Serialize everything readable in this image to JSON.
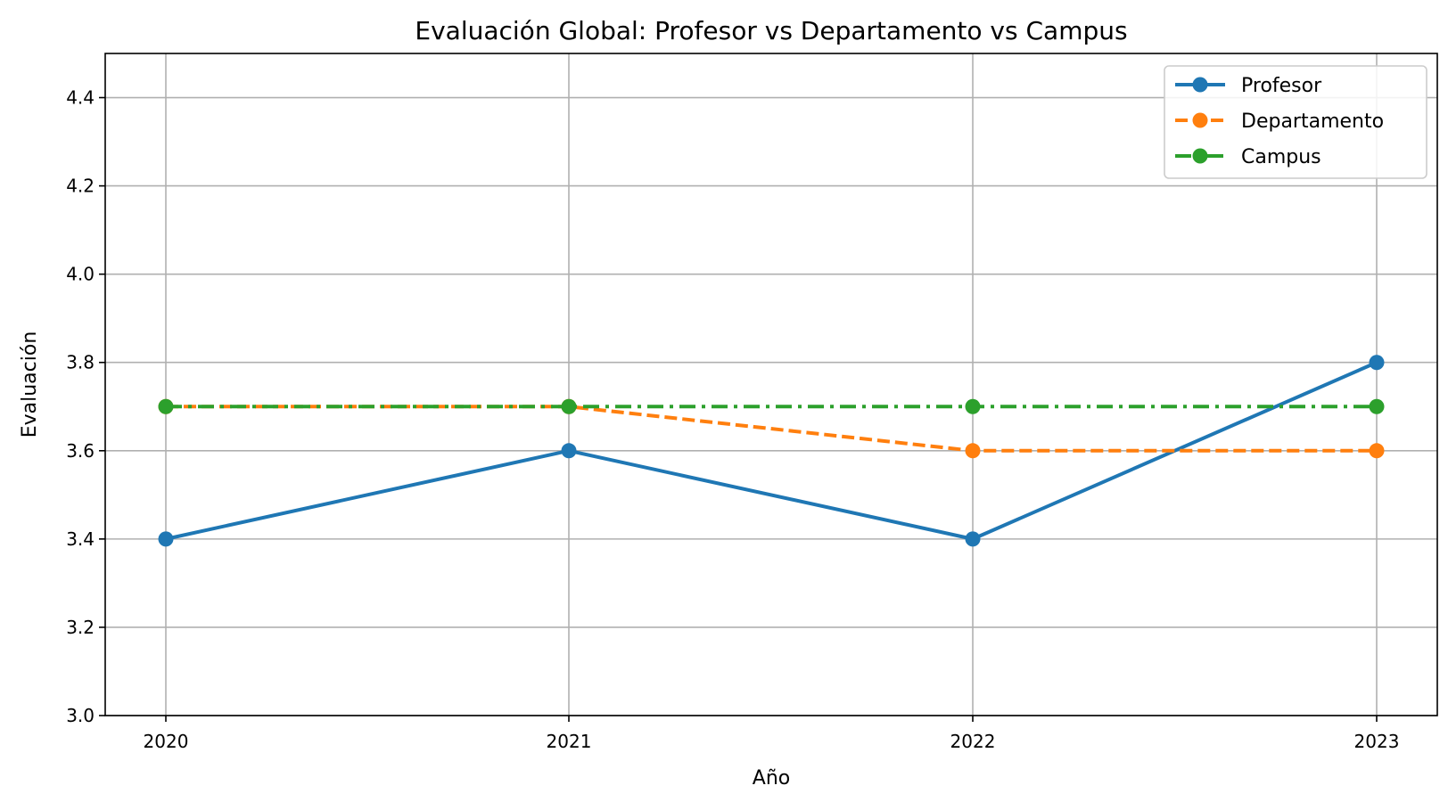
{
  "chart_data": {
    "type": "line",
    "title": "Evaluación Global: Profesor vs Departamento vs Campus",
    "xlabel": "Año",
    "ylabel": "Evaluación",
    "x": [
      "2020",
      "2021",
      "2022",
      "2023"
    ],
    "ylim": [
      3.0,
      4.5
    ],
    "yticks": [
      "3.0",
      "3.2",
      "3.4",
      "3.6",
      "3.8",
      "4.0",
      "4.2",
      "4.4"
    ],
    "grid": true,
    "legend_position": "top-right",
    "series": [
      {
        "name": "Profesor",
        "values": [
          3.4,
          3.6,
          3.4,
          3.8
        ],
        "color": "#1f77b4",
        "style": "solid"
      },
      {
        "name": "Departamento",
        "values": [
          3.7,
          3.7,
          3.6,
          3.6
        ],
        "color": "#ff7f0e",
        "style": "dashed"
      },
      {
        "name": "Campus",
        "values": [
          3.7,
          3.7,
          3.7,
          3.7
        ],
        "color": "#2ca02c",
        "style": "dashdot"
      }
    ]
  }
}
